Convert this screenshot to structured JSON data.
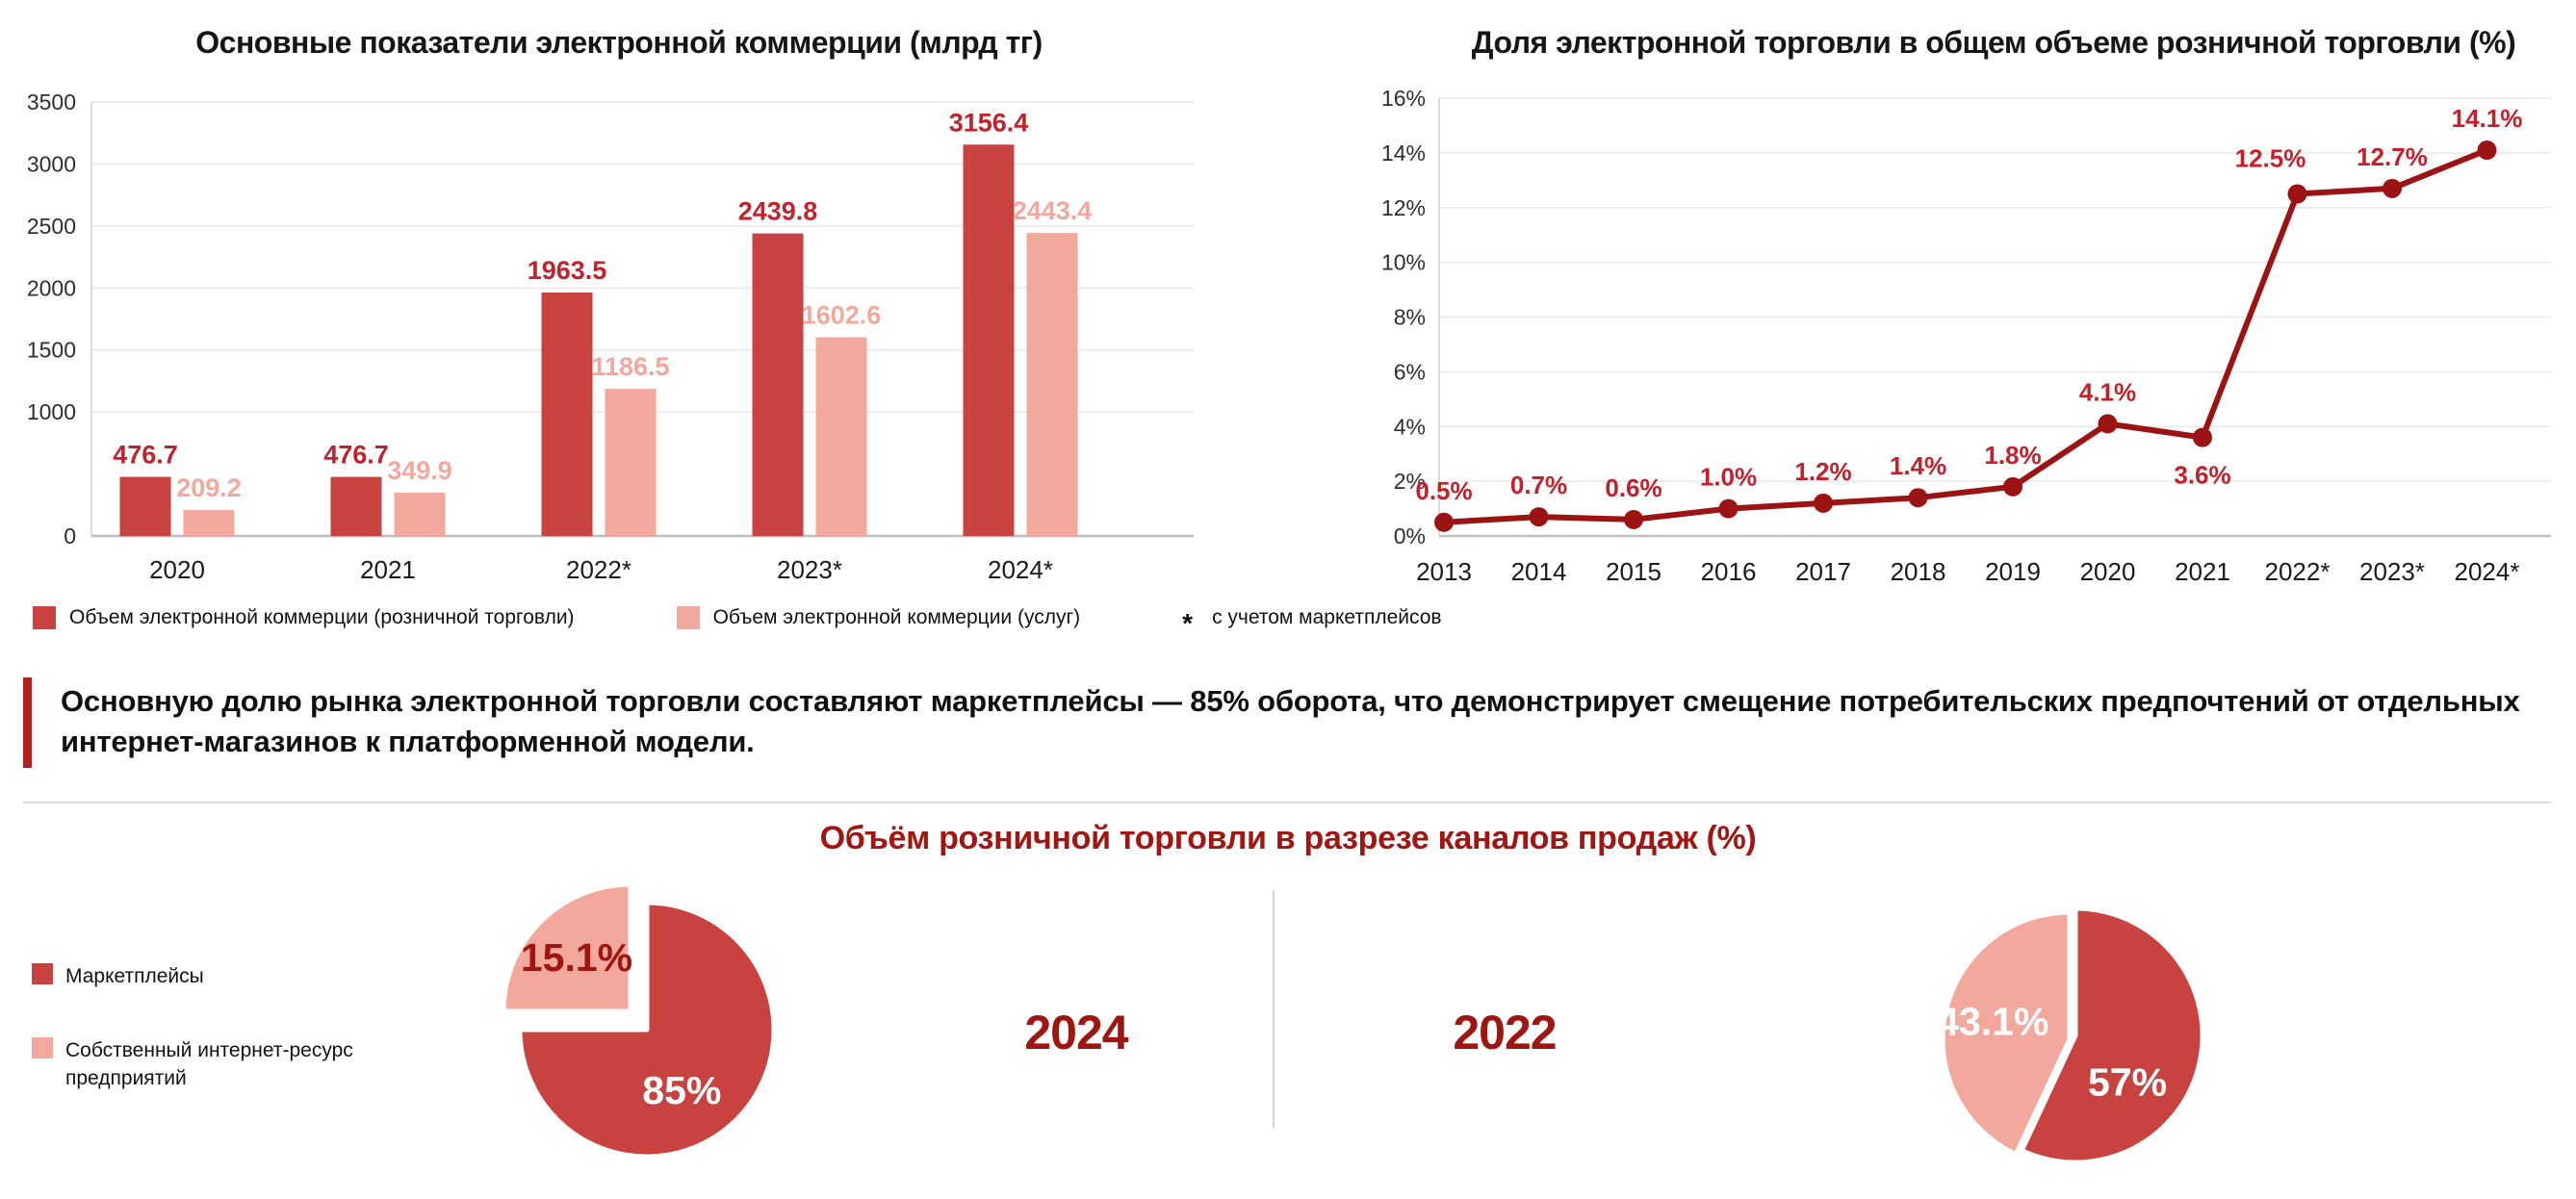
{
  "chart_data": [
    {
      "type": "bar",
      "title": "Основные показатели электронной коммерции (млрд тг)",
      "categories": [
        "2020",
        "2021",
        "2022*",
        "2023*",
        "2024*"
      ],
      "series": [
        {
          "name": "Объем электронной коммерции (розничной торговли)",
          "color": "#C8423F",
          "label_color": "#C0232C",
          "values": [
            476.7,
            476.7,
            1963.5,
            2439.8,
            3156.4
          ],
          "labels": [
            "476.7",
            "476.7",
            "1963.5",
            "2439.8",
            "3156.4"
          ]
        },
        {
          "name": "Объем электронной коммерции (услуг)",
          "color": "#F2A89D",
          "label_color": "#F2A89D",
          "values": [
            209.2,
            349.9,
            1186.5,
            1602.6,
            2443.4
          ],
          "labels": [
            "209.2",
            "349.9",
            "1186.5",
            "1602.6",
            "2443.4"
          ]
        }
      ],
      "y_ticks": [
        3500,
        3000,
        2500,
        2000,
        1500,
        1000,
        0
      ],
      "ylim": [
        0,
        3500
      ],
      "grid": true,
      "legend_position": "bottom",
      "footnote_mark": "*",
      "footnote": "с учетом маркетплейсов"
    },
    {
      "type": "line",
      "title": "Доля электронной торговли в общем объеме розничной торговли (%)",
      "line_color": "#9C1313",
      "label_color": "#C5202A",
      "ylim": [
        0,
        16
      ],
      "y_ticks": [
        16,
        14,
        12,
        10,
        8,
        6,
        4,
        2,
        0
      ],
      "grid": true,
      "points": [
        {
          "x": "2013",
          "value": 0.5,
          "label": "0.5%",
          "label_pos": "above"
        },
        {
          "x": "2014",
          "value": 0.7,
          "label": "0.7%",
          "label_pos": "above"
        },
        {
          "x": "2015",
          "value": 0.6,
          "label": "0.6%",
          "label_pos": "above"
        },
        {
          "x": "2016",
          "value": 1.0,
          "label": "1.0%",
          "label_pos": "above"
        },
        {
          "x": "2017",
          "value": 1.2,
          "label": "1.2%",
          "label_pos": "above"
        },
        {
          "x": "2018",
          "value": 1.4,
          "label": "1.4%",
          "label_pos": "above"
        },
        {
          "x": "2019",
          "value": 1.8,
          "label": "1.8%",
          "label_pos": "above"
        },
        {
          "x": "2020",
          "value": 4.1,
          "label": "4.1%",
          "label_pos": "above"
        },
        {
          "x": "2021",
          "value": 3.6,
          "label": "3.6%",
          "label_pos": "below"
        },
        {
          "x": "2022*",
          "value": 12.5,
          "label": "12.5%",
          "label_pos": "above-left"
        },
        {
          "x": "2023*",
          "value": 12.7,
          "label": "12.7%",
          "label_pos": "above"
        },
        {
          "x": "2024*",
          "value": 14.1,
          "label": "14.1%",
          "label_pos": "above"
        }
      ]
    },
    {
      "type": "pie",
      "year": "2024",
      "slices": [
        {
          "name": "Маркетплейсы",
          "value": 85,
          "label": "85%",
          "color": "#C8423F",
          "label_color": "#FFFFFF",
          "visual_deg": 270,
          "label_az": 150,
          "label_rf": 0.55
        },
        {
          "name": "Собственный интернет-ресурс предприятий",
          "value": 15.1,
          "label": "15.1%",
          "color": "#F2A89D",
          "label_color": "#9E1512",
          "visual_deg": 90,
          "explode": [
            -17,
            -19
          ],
          "label_az": 315,
          "label_rf": 0.6
        }
      ]
    },
    {
      "type": "pie",
      "year": "2022",
      "slices": [
        {
          "name": "Маркетплейсы",
          "value": 57,
          "label": "57%",
          "color": "#C8423F",
          "label_color": "#FFFFFF",
          "label_az": 132,
          "label_rf": 0.55
        },
        {
          "name": "Собственный интернет-ресурс предприятий",
          "value": 43.1,
          "label": "43.1%",
          "color": "#F2A89D",
          "label_color": "#FFFFFF",
          "explode": [
            -6,
            4
          ],
          "label_az": 283,
          "label_rf": 0.62
        }
      ]
    }
  ],
  "pie_section": {
    "title": "Объём розничной торговли в разрезе каналов продаж (%)",
    "title_color": "#A21511",
    "year_color": "#9E1512",
    "legend": [
      {
        "label": "Маркетплейсы",
        "color": "#C8423F"
      },
      {
        "label": "Собственный интернет-ресурс\nпредприятий",
        "color": "#F2A89D"
      }
    ]
  },
  "callout": {
    "accent_color": "#B2201F",
    "text": "Основную долю рынка электронной торговли составляют маркетплейсы — 85% оборота, что демонстрирует смещение потребительских предпочтений от отдельных\nинтернет-магазинов к платформенной модели."
  }
}
